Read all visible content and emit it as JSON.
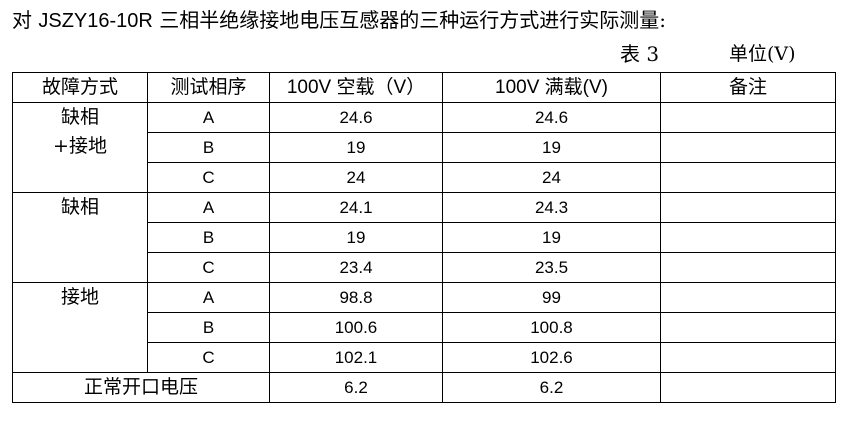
{
  "intro": {
    "prefix": "对 ",
    "model": "JSZY16-10R",
    "suffix": " 三相半绝缘接地电压互感器的三种运行方式进行实际测量:"
  },
  "table_no": "表 3",
  "unit": "单位(V)",
  "headers": {
    "mode": "故障方式",
    "phase": "测试相序",
    "noload": "100V 空载（V）",
    "fullload": "100V 满载(V)",
    "remark": "备注"
  },
  "groups": [
    {
      "label_lines": [
        "缺相",
        "+接地"
      ],
      "rows": [
        {
          "phase": "A",
          "noload": "24.6",
          "fullload": "24.6",
          "remark": ""
        },
        {
          "phase": "B",
          "noload": "19",
          "fullload": "19",
          "remark": ""
        },
        {
          "phase": "C",
          "noload": "24",
          "fullload": "24",
          "remark": ""
        }
      ]
    },
    {
      "label_lines": [
        "缺相"
      ],
      "rows": [
        {
          "phase": "A",
          "noload": "24.1",
          "fullload": "24.3",
          "remark": ""
        },
        {
          "phase": "B",
          "noload": "19",
          "fullload": "19",
          "remark": ""
        },
        {
          "phase": "C",
          "noload": "23.4",
          "fullload": "23.5",
          "remark": ""
        }
      ]
    },
    {
      "label_lines": [
        "接地"
      ],
      "rows": [
        {
          "phase": "A",
          "noload": "98.8",
          "fullload": "99",
          "remark": ""
        },
        {
          "phase": "B",
          "noload": "100.6",
          "fullload": "100.8",
          "remark": ""
        },
        {
          "phase": "C",
          "noload": "102.1",
          "fullload": "102.6",
          "remark": ""
        }
      ]
    }
  ],
  "footer": {
    "label": "正常开口电压",
    "noload": "6.2",
    "fullload": "6.2",
    "remark": ""
  }
}
